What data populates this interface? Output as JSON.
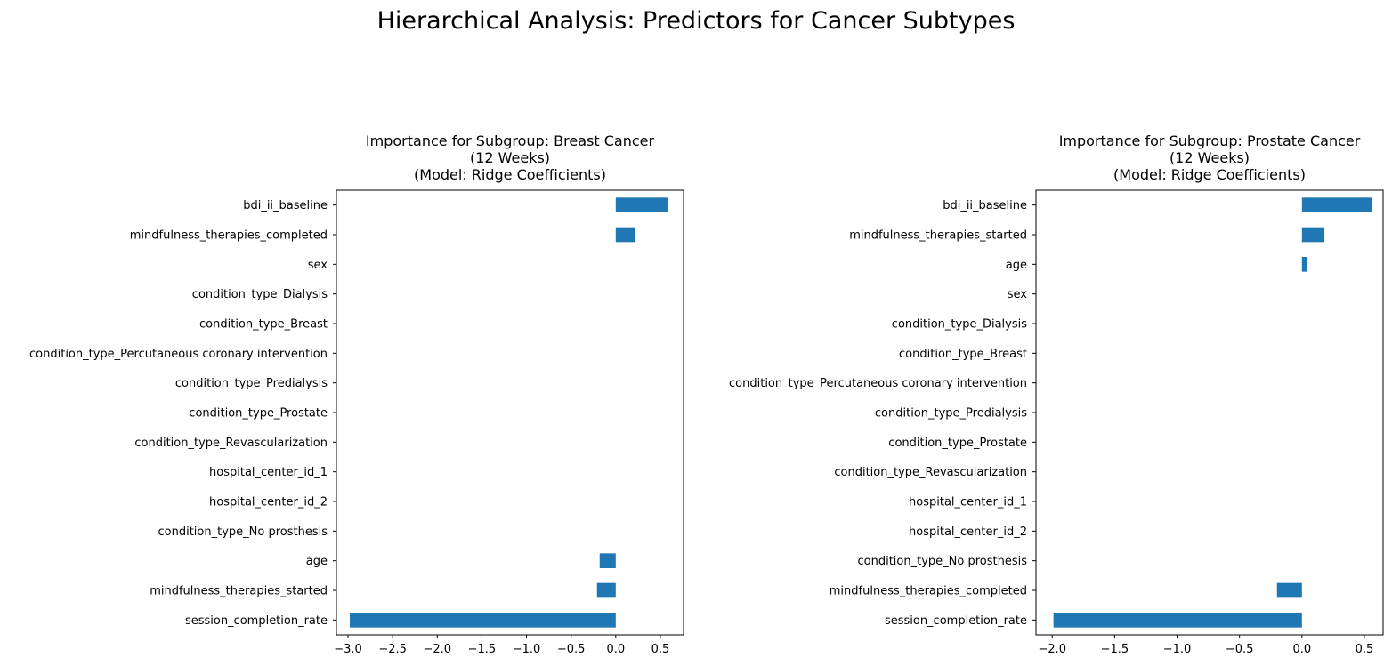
{
  "title": "Hierarchical Analysis: Predictors for Cancer Subtypes",
  "colors": {
    "bar": "#1f77b4",
    "axis": "#000000"
  },
  "chart_data": [
    {
      "type": "bar",
      "orientation": "horizontal",
      "title_lines": [
        "Importance for Subgroup: Breast Cancer",
        "(12 Weeks)",
        "(Model: Ridge Coefficients)"
      ],
      "categories": [
        "bdi_ii_baseline",
        "mindfulness_therapies_completed",
        "sex",
        "condition_type_Dialysis",
        "condition_type_Breast",
        "condition_type_Percutaneous coronary intervention",
        "condition_type_Predialysis",
        "condition_type_Prostate",
        "condition_type_Revascularization",
        "hospital_center_id_1",
        "hospital_center_id_2",
        "condition_type_No prosthesis",
        "age",
        "mindfulness_therapies_started",
        "session_completion_rate"
      ],
      "values": [
        0.58,
        0.22,
        0,
        0,
        0,
        0,
        0,
        0,
        0,
        0,
        0,
        0,
        -0.18,
        -0.21,
        -2.98
      ],
      "xticks": [
        -3.0,
        -2.5,
        -2.0,
        -1.5,
        -1.0,
        -0.5,
        0.0,
        0.5
      ],
      "xtick_labels": [
        "−3.0",
        "−2.5",
        "−2.0",
        "−1.5",
        "−1.0",
        "−0.5",
        "0.0",
        "0.5"
      ],
      "xlim": [
        -3.13,
        0.76
      ],
      "grid": false,
      "legend": "none"
    },
    {
      "type": "bar",
      "orientation": "horizontal",
      "title_lines": [
        "Importance for Subgroup: Prostate Cancer",
        "(12 Weeks)",
        "(Model: Ridge Coefficients)"
      ],
      "categories": [
        "bdi_ii_baseline",
        "mindfulness_therapies_started",
        "age",
        "sex",
        "condition_type_Dialysis",
        "condition_type_Breast",
        "condition_type_Percutaneous coronary intervention",
        "condition_type_Predialysis",
        "condition_type_Prostate",
        "condition_type_Revascularization",
        "hospital_center_id_1",
        "hospital_center_id_2",
        "condition_type_No prosthesis",
        "mindfulness_therapies_completed",
        "session_completion_rate"
      ],
      "values": [
        0.56,
        0.18,
        0.04,
        0,
        0,
        0,
        0,
        0,
        0,
        0,
        0,
        0,
        0,
        -0.2,
        -1.99
      ],
      "xticks": [
        -2.0,
        -1.5,
        -1.0,
        -0.5,
        0.0,
        0.5
      ],
      "xtick_labels": [
        "−2.0",
        "−1.5",
        "−1.0",
        "−0.5",
        "0.0",
        "0.5"
      ],
      "xlim": [
        -2.13,
        0.65
      ],
      "grid": false,
      "legend": "none"
    }
  ]
}
